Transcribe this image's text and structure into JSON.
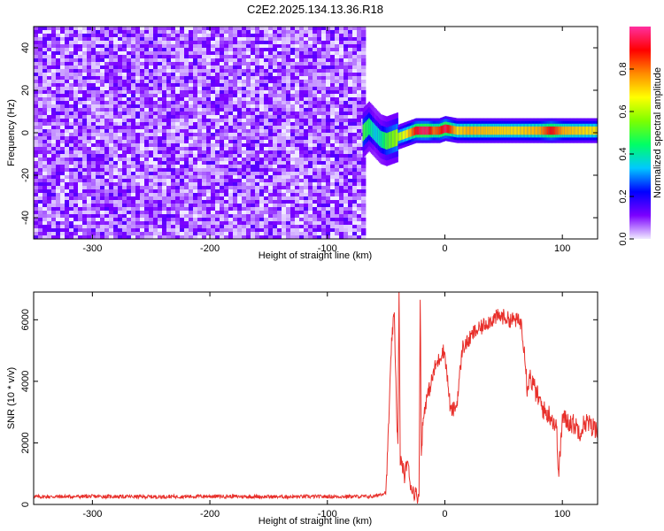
{
  "title": "C2E2.2025.134.13.36.R18",
  "chart_data": [
    {
      "type": "heatmap",
      "xlabel": "Height of straight line (km)",
      "ylabel": "Frequency (Hz)",
      "xlim": [
        -350,
        130
      ],
      "ylim": [
        -50,
        50
      ],
      "xticks": [
        -300,
        -200,
        -100,
        0,
        100
      ],
      "xtick_labels": [
        "-300",
        "-200",
        "-100",
        "0",
        "100"
      ],
      "yticks": [
        -40,
        -20,
        0,
        20,
        40
      ],
      "ytick_labels": [
        "-40",
        "-20",
        "0",
        "20",
        "40"
      ],
      "noise_region_x": [
        -350,
        -70
      ],
      "signal_track": {
        "x": [
          -70,
          -65,
          -60,
          -55,
          -50,
          -45,
          -40,
          -35,
          -30,
          -25,
          -20,
          -15,
          -10,
          -5,
          0,
          10,
          20,
          40,
          60,
          80,
          90,
          100,
          110,
          120,
          130
        ],
        "frequency_hz": [
          0,
          3,
          0,
          -3,
          -4,
          -3,
          -2,
          -1,
          0,
          1,
          1,
          1,
          1,
          1,
          2,
          1,
          1,
          1,
          1,
          1,
          1,
          1,
          1,
          1,
          1
        ],
        "amplitude": [
          0.5,
          0.45,
          0.35,
          0.4,
          0.5,
          0.55,
          0.6,
          0.65,
          0.75,
          0.9,
          0.95,
          0.95,
          0.8,
          0.85,
          0.95,
          0.7,
          0.75,
          0.72,
          0.7,
          0.75,
          0.9,
          0.75,
          0.72,
          0.7,
          0.7
        ]
      },
      "colorbar": {
        "label": "Normalized spectral amplitude",
        "range": [
          0,
          1
        ],
        "ticks": [
          0.0,
          0.2,
          0.4,
          0.6,
          0.8
        ],
        "tick_labels": [
          "0.0",
          "0.2",
          "0.4",
          "0.6",
          "0.8"
        ],
        "colors": [
          "#f0eaff",
          "#7b00ff",
          "#0000ff",
          "#00c8ff",
          "#00ff66",
          "#7dff00",
          "#ffff00",
          "#ff8c00",
          "#ff0000",
          "#ff2fa0"
        ]
      }
    },
    {
      "type": "line",
      "xlabel": "Height of straight line (km)",
      "ylabel": "SNR (10 * v/v)",
      "xlim": [
        -350,
        130
      ],
      "ylim": [
        0,
        6900
      ],
      "xticks": [
        -300,
        -200,
        -100,
        0,
        100
      ],
      "xtick_labels": [
        "-300",
        "-200",
        "-100",
        "0",
        "100"
      ],
      "yticks": [
        0,
        2000,
        4000,
        6000
      ],
      "ytick_labels": [
        "0",
        "2000",
        "4000",
        "6000"
      ],
      "color": "#e8302b",
      "series": [
        {
          "x": [
            -350,
            -300,
            -250,
            -200,
            -150,
            -100,
            -60,
            -50,
            -47,
            -45,
            -43,
            -41,
            -40,
            -39,
            -38,
            -36,
            -34,
            -32,
            -30,
            -28,
            -26,
            -24,
            -22,
            -21,
            -20,
            -19,
            -17,
            -15,
            -12,
            -10,
            -8,
            -5,
            -2,
            0,
            5,
            10,
            15,
            20,
            25,
            30,
            35,
            40,
            45,
            50,
            55,
            60,
            65,
            68,
            70,
            72,
            75,
            80,
            85,
            90,
            95,
            97,
            100,
            105,
            110,
            115,
            120,
            125,
            130
          ],
          "y": [
            250,
            260,
            250,
            265,
            250,
            255,
            260,
            400,
            3500,
            5500,
            6100,
            3000,
            1800,
            6900,
            1500,
            1200,
            900,
            1500,
            800,
            500,
            400,
            300,
            250,
            6900,
            1500,
            2500,
            3200,
            3500,
            3900,
            4200,
            4500,
            4700,
            5000,
            4900,
            3000,
            3200,
            5100,
            5300,
            5600,
            5700,
            5900,
            6000,
            6100,
            6100,
            6000,
            6000,
            5900,
            5000,
            3800,
            4200,
            3900,
            3400,
            3000,
            2900,
            2500,
            1000,
            2800,
            2700,
            2600,
            2400,
            2700,
            2500,
            2500
          ]
        }
      ]
    }
  ]
}
